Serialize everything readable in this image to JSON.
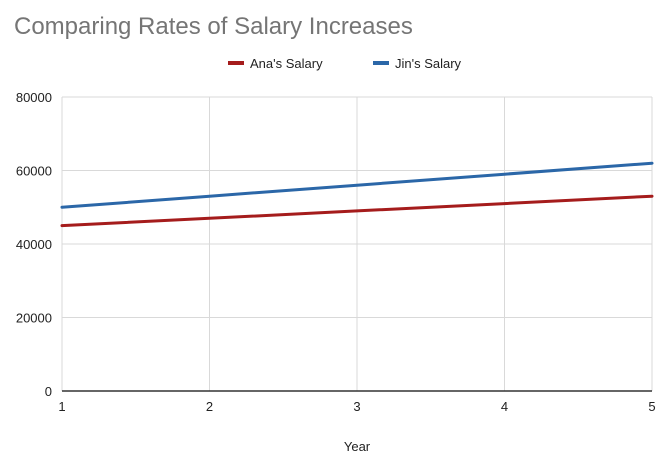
{
  "chart_data": {
    "type": "line",
    "title": "Comparing Rates of Salary Increases",
    "xlabel": "Year",
    "ylabel": "",
    "x": [
      1,
      2,
      3,
      4,
      5
    ],
    "xlim": [
      1,
      5
    ],
    "ylim": [
      0,
      80000
    ],
    "y_ticks": [
      0,
      20000,
      40000,
      60000,
      80000
    ],
    "x_ticks": [
      1,
      2,
      3,
      4,
      5
    ],
    "grid": true,
    "legend_position": "top-center",
    "series": [
      {
        "name": "Ana's Salary",
        "color": "#a51c1c",
        "values": [
          45000,
          47000,
          49000,
          51000,
          53000
        ]
      },
      {
        "name": "Jin's Salary",
        "color": "#2b67a8",
        "values": [
          50000,
          53000,
          56000,
          59000,
          62000
        ]
      }
    ]
  }
}
